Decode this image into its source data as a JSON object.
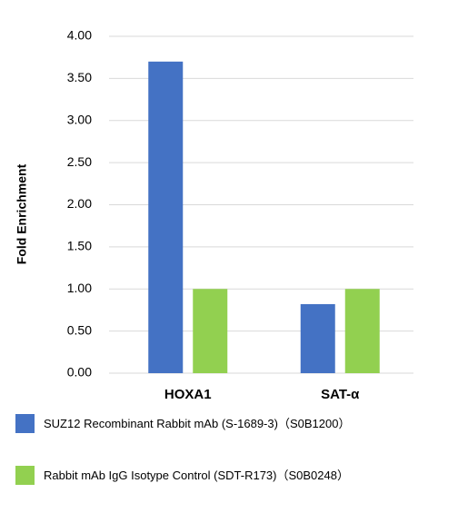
{
  "chart_data": {
    "type": "bar",
    "y_label": "Fold Enrichment",
    "categories": [
      "HOXA1",
      "SAT-α"
    ],
    "series": [
      {
        "name": "SUZ12 Recombinant Rabbit mAb (S-1689-3)（S0B1200）",
        "color": "#4472c4",
        "values": [
          3.7,
          0.82
        ]
      },
      {
        "name": "Rabbit mAb IgG Isotype Control (SDT-R173)（S0B0248）",
        "color": "#92d050",
        "values": [
          1.0,
          1.0
        ]
      }
    ],
    "ylim": [
      0,
      4
    ],
    "yticks": [
      {
        "value": 0,
        "label": "0.00"
      },
      {
        "value": 0.5,
        "label": "0.50"
      },
      {
        "value": 1,
        "label": "1.00"
      },
      {
        "value": 1.5,
        "label": "1.50"
      },
      {
        "value": 2,
        "label": "2.00"
      },
      {
        "value": 2.5,
        "label": "2.50"
      },
      {
        "value": 3,
        "label": "3.00"
      },
      {
        "value": 3.5,
        "label": "3.50"
      },
      {
        "value": 4,
        "label": "4.00"
      }
    ],
    "grid": true
  }
}
